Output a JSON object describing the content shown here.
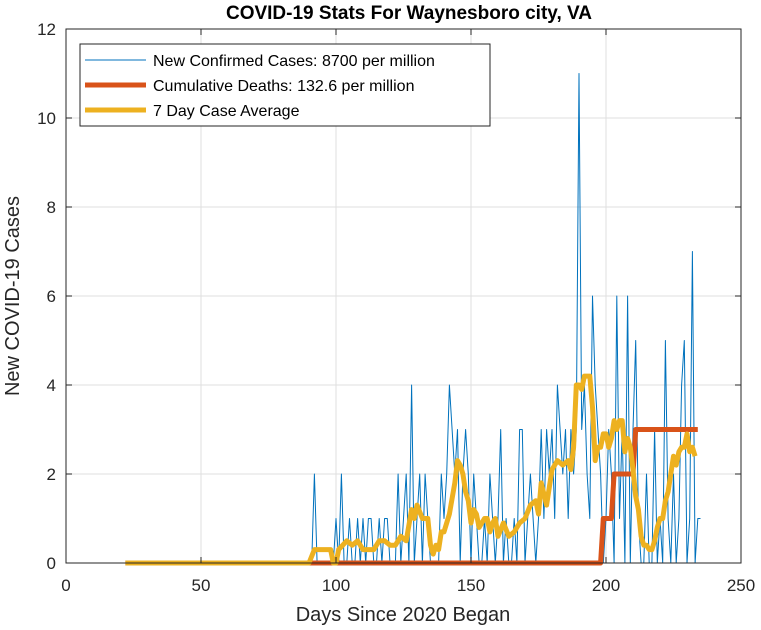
{
  "chart_data": {
    "type": "line",
    "title": "COVID-19 Stats For Waynesboro city, VA",
    "xlabel": "Days Since 2020 Began",
    "ylabel": "New COVID-19 Cases",
    "xlim": [
      0,
      250
    ],
    "ylim": [
      0,
      12
    ],
    "xticks": [
      0,
      50,
      100,
      150,
      200,
      250
    ],
    "yticks": [
      0,
      2,
      4,
      6,
      8,
      10,
      12
    ],
    "grid": true,
    "legend_position": "top-left",
    "series": [
      {
        "name": "New Confirmed Cases: 8700 per million",
        "color": "#0072BD",
        "points": [
          [
            22,
            0
          ],
          [
            30,
            0
          ],
          [
            40,
            0
          ],
          [
            50,
            0
          ],
          [
            60,
            0
          ],
          [
            70,
            0
          ],
          [
            80,
            0
          ],
          [
            90,
            0
          ],
          [
            91,
            0
          ],
          [
            92,
            2
          ],
          [
            93,
            0
          ],
          [
            94,
            0
          ],
          [
            95,
            0
          ],
          [
            96,
            0
          ],
          [
            97,
            0
          ],
          [
            98,
            0
          ],
          [
            99,
            0
          ],
          [
            100,
            1
          ],
          [
            101,
            0
          ],
          [
            102,
            2
          ],
          [
            103,
            0
          ],
          [
            104,
            0
          ],
          [
            105,
            1
          ],
          [
            106,
            0
          ],
          [
            107,
            0
          ],
          [
            108,
            1
          ],
          [
            109,
            0
          ],
          [
            110,
            1
          ],
          [
            111,
            0
          ],
          [
            112,
            1
          ],
          [
            113,
            1
          ],
          [
            114,
            0
          ],
          [
            115,
            0
          ],
          [
            116,
            1
          ],
          [
            117,
            0
          ],
          [
            118,
            1
          ],
          [
            119,
            1
          ],
          [
            120,
            0
          ],
          [
            121,
            0
          ],
          [
            122,
            0
          ],
          [
            123,
            2
          ],
          [
            124,
            0
          ],
          [
            125,
            1
          ],
          [
            126,
            2
          ],
          [
            127,
            0
          ],
          [
            128,
            4
          ],
          [
            129,
            0
          ],
          [
            130,
            1
          ],
          [
            131,
            2
          ],
          [
            132,
            0
          ],
          [
            133,
            2
          ],
          [
            134,
            1
          ],
          [
            135,
            0
          ],
          [
            136,
            0
          ],
          [
            137,
            0
          ],
          [
            138,
            0
          ],
          [
            139,
            2
          ],
          [
            140,
            1
          ],
          [
            141,
            2
          ],
          [
            142,
            4
          ],
          [
            143,
            3
          ],
          [
            144,
            2
          ],
          [
            145,
            3
          ],
          [
            146,
            0
          ],
          [
            147,
            2
          ],
          [
            148,
            3
          ],
          [
            149,
            2
          ],
          [
            150,
            0
          ],
          [
            151,
            2
          ],
          [
            152,
            1
          ],
          [
            153,
            0
          ],
          [
            154,
            0
          ],
          [
            155,
            1
          ],
          [
            156,
            0
          ],
          [
            157,
            2
          ],
          [
            158,
            1
          ],
          [
            159,
            0
          ],
          [
            160,
            1
          ],
          [
            161,
            3
          ],
          [
            162,
            0
          ],
          [
            163,
            1
          ],
          [
            164,
            0
          ],
          [
            165,
            0
          ],
          [
            166,
            1
          ],
          [
            167,
            0
          ],
          [
            168,
            3
          ],
          [
            169,
            3
          ],
          [
            170,
            0
          ],
          [
            171,
            1
          ],
          [
            172,
            2
          ],
          [
            173,
            1
          ],
          [
            174,
            0
          ],
          [
            175,
            1
          ],
          [
            176,
            3
          ],
          [
            177,
            1
          ],
          [
            178,
            3
          ],
          [
            179,
            2
          ],
          [
            180,
            3
          ],
          [
            181,
            1
          ],
          [
            182,
            4
          ],
          [
            183,
            3
          ],
          [
            184,
            2
          ],
          [
            185,
            3
          ],
          [
            186,
            1
          ],
          [
            187,
            3
          ],
          [
            188,
            2
          ],
          [
            189,
            3
          ],
          [
            190,
            11
          ],
          [
            191,
            3
          ],
          [
            192,
            4
          ],
          [
            193,
            2
          ],
          [
            194,
            1
          ],
          [
            195,
            6
          ],
          [
            196,
            4
          ],
          [
            197,
            3
          ],
          [
            198,
            2
          ],
          [
            199,
            0
          ],
          [
            200,
            1
          ],
          [
            201,
            3
          ],
          [
            202,
            2
          ],
          [
            203,
            0
          ],
          [
            204,
            6
          ],
          [
            205,
            1
          ],
          [
            206,
            3
          ],
          [
            207,
            0
          ],
          [
            208,
            6
          ],
          [
            209,
            0
          ],
          [
            210,
            3
          ],
          [
            211,
            5
          ],
          [
            212,
            1
          ],
          [
            213,
            0
          ],
          [
            214,
            0
          ],
          [
            215,
            2
          ],
          [
            216,
            0
          ],
          [
            217,
            0
          ],
          [
            218,
            3
          ],
          [
            219,
            0
          ],
          [
            220,
            1
          ],
          [
            221,
            0
          ],
          [
            222,
            5
          ],
          [
            223,
            1
          ],
          [
            224,
            0
          ],
          [
            225,
            2
          ],
          [
            226,
            0
          ],
          [
            227,
            1
          ],
          [
            228,
            4
          ],
          [
            229,
            5
          ],
          [
            230,
            0
          ],
          [
            231,
            1
          ],
          [
            232,
            7
          ],
          [
            233,
            0
          ],
          [
            234,
            1
          ],
          [
            235,
            1
          ]
        ]
      },
      {
        "name": "Cumulative Deaths: 132.6 per million",
        "color": "#D95319",
        "points": [
          [
            22,
            0
          ],
          [
            198,
            0
          ],
          [
            199,
            1
          ],
          [
            202,
            1
          ],
          [
            203,
            2
          ],
          [
            210,
            2
          ],
          [
            211,
            3
          ],
          [
            234,
            3
          ]
        ]
      },
      {
        "name": "7 Day Case Average",
        "color": "#EDB120",
        "points": [
          [
            22,
            0
          ],
          [
            90,
            0
          ],
          [
            92,
            0.3
          ],
          [
            98,
            0.3
          ],
          [
            99,
            0
          ],
          [
            100,
            0
          ],
          [
            101,
            0.3
          ],
          [
            104,
            0.5
          ],
          [
            106,
            0.4
          ],
          [
            108,
            0.5
          ],
          [
            110,
            0.3
          ],
          [
            114,
            0.3
          ],
          [
            116,
            0.5
          ],
          [
            118,
            0.5
          ],
          [
            120,
            0.4
          ],
          [
            122,
            0.4
          ],
          [
            124,
            0.6
          ],
          [
            126,
            0.5
          ],
          [
            128,
            1.2
          ],
          [
            129,
            1.0
          ],
          [
            130,
            1.3
          ],
          [
            132,
            1.0
          ],
          [
            134,
            1.0
          ],
          [
            135,
            0.4
          ],
          [
            136,
            0.2
          ],
          [
            137,
            0.4
          ],
          [
            138,
            0.3
          ],
          [
            139,
            0.7
          ],
          [
            140,
            0.7
          ],
          [
            142,
            1.1
          ],
          [
            144,
            1.8
          ],
          [
            145,
            2.3
          ],
          [
            146,
            2.2
          ],
          [
            147,
            2.0
          ],
          [
            148,
            1.6
          ],
          [
            149,
            1.4
          ],
          [
            150,
            0.9
          ],
          [
            151,
            1.2
          ],
          [
            152,
            1.1
          ],
          [
            153,
            0.8
          ],
          [
            154,
            0.9
          ],
          [
            155,
            1.0
          ],
          [
            156,
            1.0
          ],
          [
            157,
            0.7
          ],
          [
            158,
            0.9
          ],
          [
            159,
            1.0
          ],
          [
            160,
            0.6
          ],
          [
            162,
            0.9
          ],
          [
            164,
            0.6
          ],
          [
            166,
            0.7
          ],
          [
            168,
            0.9
          ],
          [
            170,
            1.0
          ],
          [
            172,
            1.3
          ],
          [
            174,
            1.4
          ],
          [
            175,
            1.1
          ],
          [
            176,
            1.8
          ],
          [
            178,
            1.3
          ],
          [
            179,
            1.7
          ],
          [
            180,
            2.1
          ],
          [
            182,
            2.3
          ],
          [
            184,
            2.2
          ],
          [
            186,
            2.3
          ],
          [
            187,
            2.1
          ],
          [
            188,
            2.6
          ],
          [
            189,
            4.0
          ],
          [
            190,
            4.0
          ],
          [
            191,
            3.9
          ],
          [
            192,
            4.2
          ],
          [
            194,
            4.2
          ],
          [
            195,
            3.5
          ],
          [
            196,
            2.3
          ],
          [
            197,
            2.6
          ],
          [
            198,
            2.6
          ],
          [
            199,
            2.9
          ],
          [
            200,
            2.9
          ],
          [
            201,
            2.6
          ],
          [
            202,
            2.8
          ],
          [
            203,
            3.2
          ],
          [
            204,
            3.0
          ],
          [
            205,
            3.2
          ],
          [
            206,
            3.2
          ],
          [
            207,
            2.5
          ],
          [
            208,
            2.8
          ],
          [
            209,
            2.6
          ],
          [
            210,
            2.1
          ],
          [
            211,
            1.5
          ],
          [
            212,
            1.2
          ],
          [
            213,
            0.6
          ],
          [
            214,
            0.4
          ],
          [
            215,
            0.4
          ],
          [
            216,
            0.3
          ],
          [
            217,
            0.3
          ],
          [
            218,
            0.5
          ],
          [
            219,
            0.8
          ],
          [
            220,
            1.0
          ],
          [
            221,
            1.0
          ],
          [
            222,
            1.4
          ],
          [
            223,
            1.6
          ],
          [
            224,
            2.0
          ],
          [
            225,
            2.4
          ],
          [
            226,
            2.2
          ],
          [
            227,
            2.5
          ],
          [
            228,
            2.6
          ],
          [
            229,
            2.6
          ],
          [
            230,
            2.9
          ],
          [
            231,
            2.5
          ],
          [
            232,
            2.6
          ],
          [
            233,
            2.4
          ]
        ]
      }
    ]
  }
}
